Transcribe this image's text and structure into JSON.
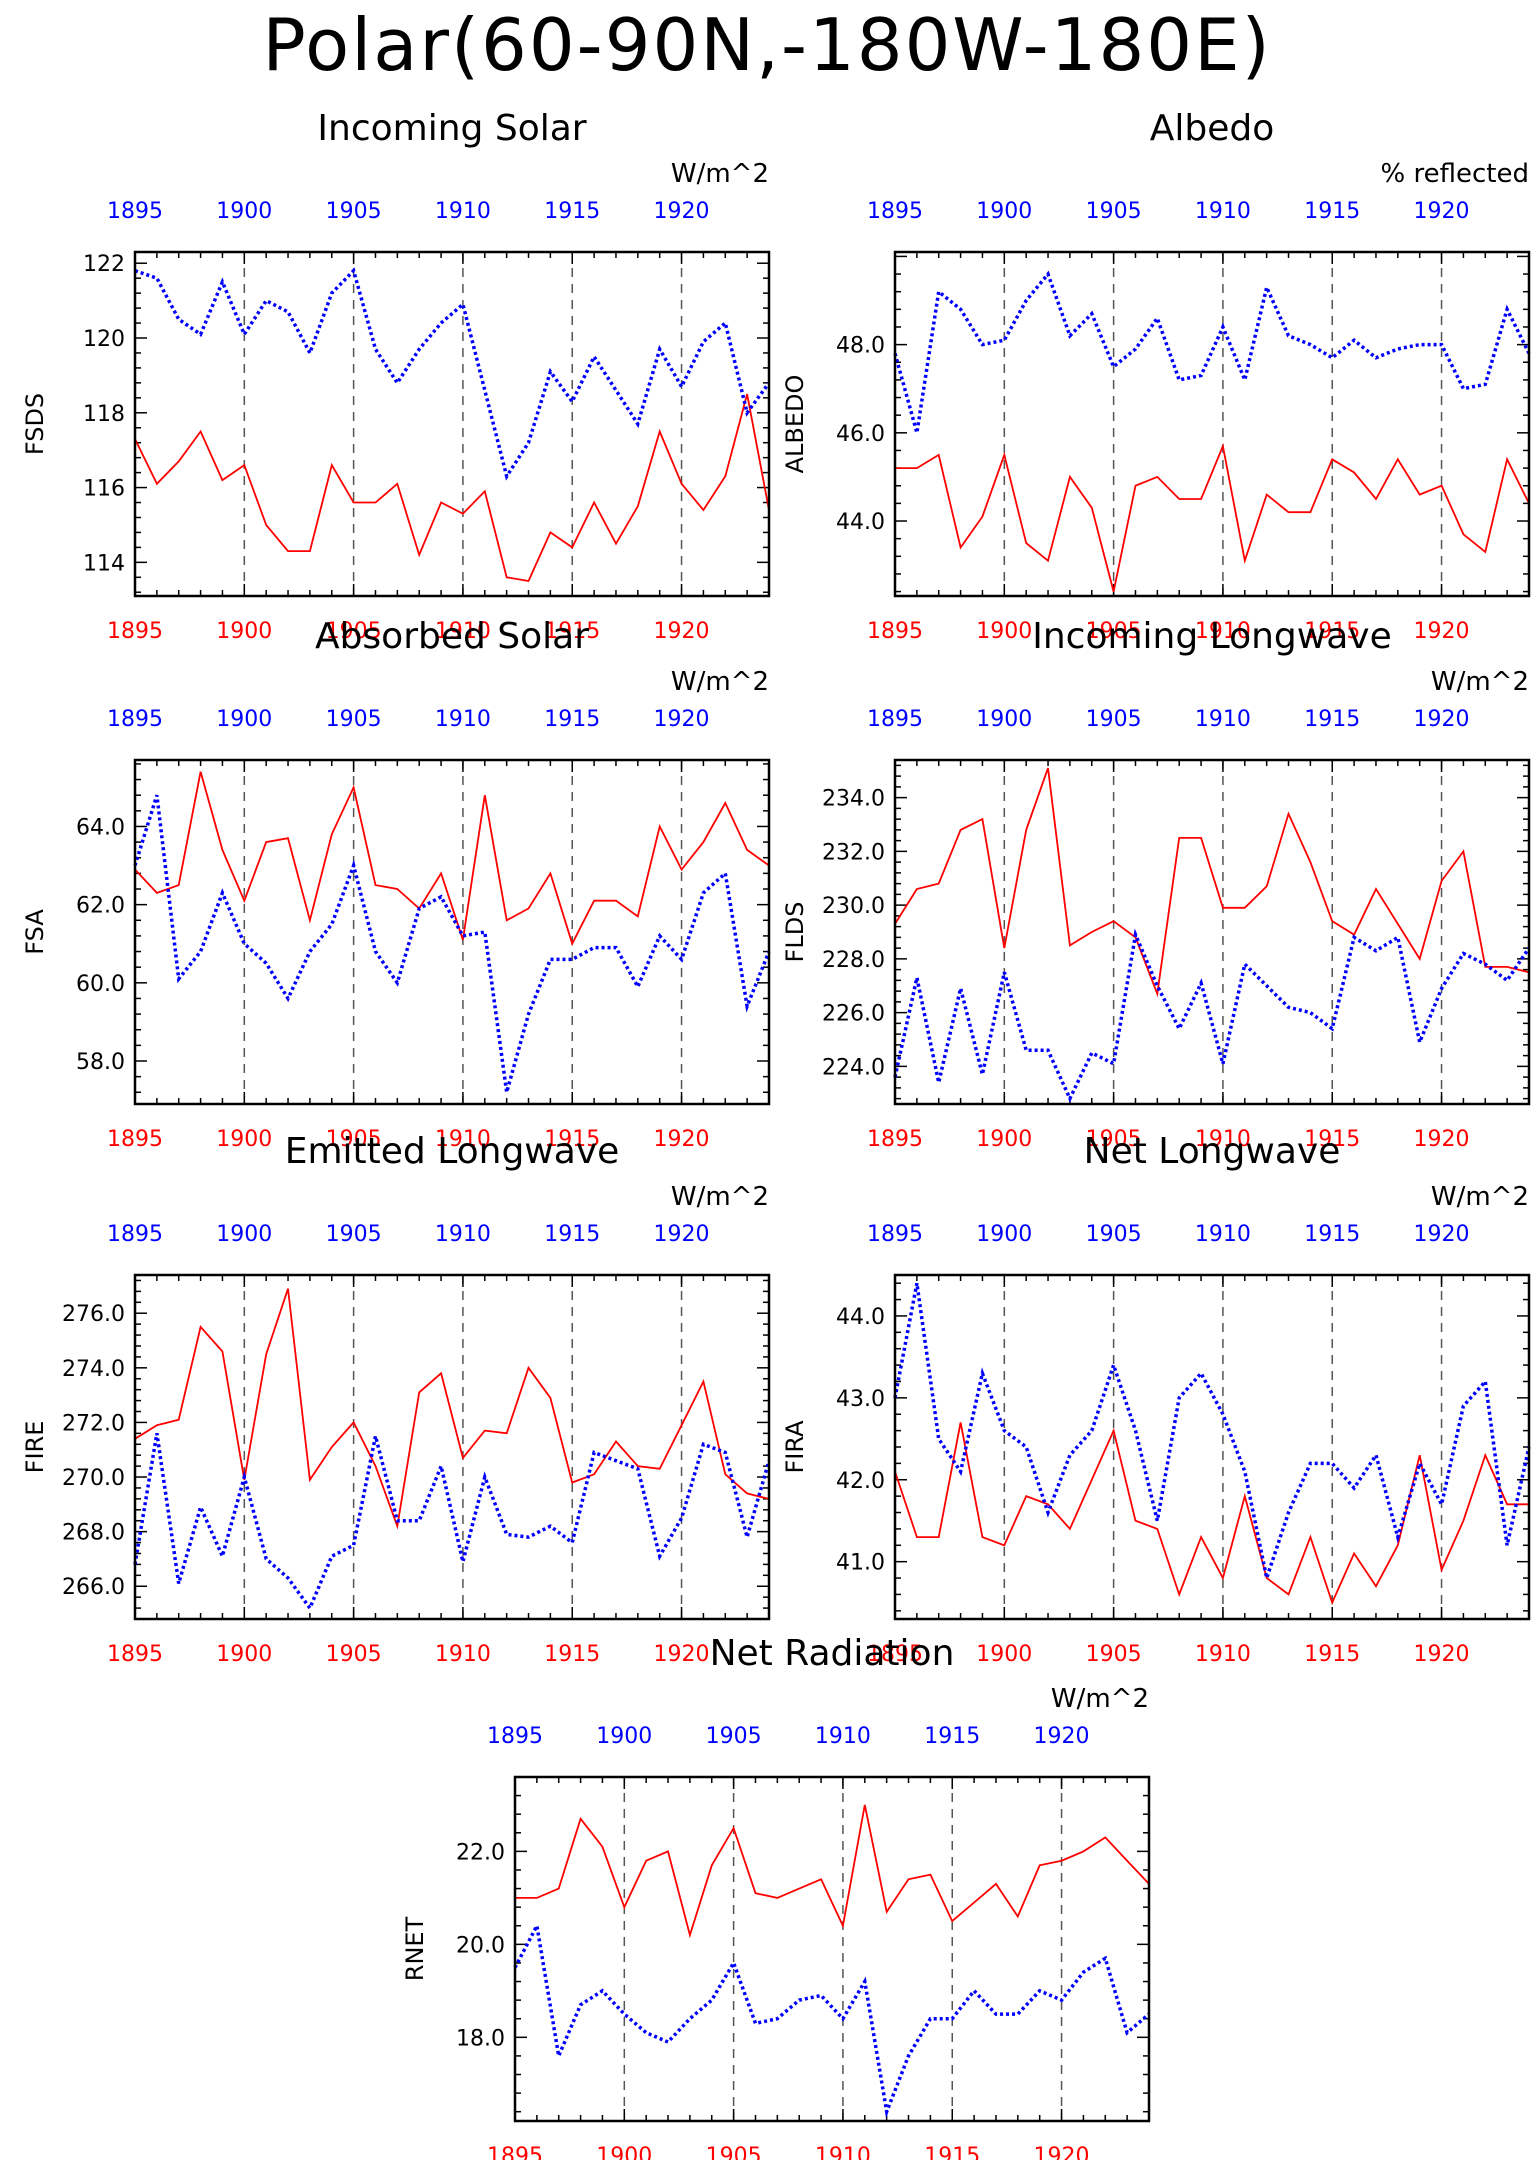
{
  "title": "Polar(60-90N,-180W-180E)",
  "colors": {
    "red": "#ff0000",
    "blue": "#0000ff",
    "axis": "#000000",
    "grid": "#555555"
  },
  "chart_data": [
    {
      "type": "line",
      "title": "Incoming Solar",
      "ylabel": "FSDS",
      "units": "W/m^2",
      "x": [
        1895,
        1896,
        1897,
        1898,
        1899,
        1900,
        1901,
        1902,
        1903,
        1904,
        1905,
        1906,
        1907,
        1908,
        1909,
        1910,
        1911,
        1912,
        1913,
        1914,
        1915,
        1916,
        1917,
        1918,
        1919,
        1920,
        1921,
        1922,
        1923,
        1924
      ],
      "xlim": [
        1895,
        1924
      ],
      "xticks": [
        1895,
        1900,
        1905,
        1910,
        1915,
        1920
      ],
      "ylim": [
        113.1,
        122.3
      ],
      "yticks": [
        114,
        116,
        118,
        120,
        122
      ],
      "ytick_decimals": 0,
      "series": [
        {
          "color": "red",
          "style": "solid",
          "values": [
            117.3,
            116.1,
            116.7,
            117.5,
            116.2,
            116.6,
            115.0,
            114.3,
            114.3,
            116.6,
            115.6,
            115.6,
            116.1,
            114.2,
            115.6,
            115.3,
            115.9,
            113.6,
            113.5,
            114.8,
            114.4,
            115.6,
            114.5,
            115.5,
            117.5,
            116.1,
            115.4,
            116.3,
            118.5,
            115.4
          ]
        },
        {
          "color": "blue",
          "style": "dotted",
          "values": [
            121.8,
            121.6,
            120.5,
            120.1,
            121.5,
            120.1,
            121.0,
            120.7,
            119.6,
            121.2,
            121.8,
            119.7,
            118.8,
            119.7,
            120.4,
            120.9,
            118.6,
            116.3,
            117.2,
            119.1,
            118.3,
            119.5,
            118.6,
            117.7,
            119.7,
            118.7,
            119.9,
            120.4,
            118.0,
            118.8
          ]
        }
      ]
    },
    {
      "type": "line",
      "title": "Albedo",
      "ylabel": "ALBEDO",
      "units": "% reflected",
      "x": [
        1895,
        1896,
        1897,
        1898,
        1899,
        1900,
        1901,
        1902,
        1903,
        1904,
        1905,
        1906,
        1907,
        1908,
        1909,
        1910,
        1911,
        1912,
        1913,
        1914,
        1915,
        1916,
        1917,
        1918,
        1919,
        1920,
        1921,
        1922,
        1923,
        1924
      ],
      "xlim": [
        1895,
        1924
      ],
      "xticks": [
        1895,
        1900,
        1905,
        1910,
        1915,
        1920
      ],
      "ylim": [
        42.3,
        50.1
      ],
      "yticks": [
        44.0,
        46.0,
        48.0
      ],
      "ytick_decimals": 1,
      "series": [
        {
          "color": "red",
          "style": "solid",
          "values": [
            45.2,
            45.2,
            45.5,
            43.4,
            44.1,
            45.5,
            43.5,
            43.1,
            45.0,
            44.3,
            42.4,
            44.8,
            45.0,
            44.5,
            44.5,
            45.7,
            43.1,
            44.6,
            44.2,
            44.2,
            45.4,
            45.1,
            44.5,
            45.4,
            44.6,
            44.8,
            43.7,
            43.3,
            45.4,
            44.4
          ]
        },
        {
          "color": "blue",
          "style": "dotted",
          "values": [
            47.8,
            46.0,
            49.2,
            48.8,
            48.0,
            48.1,
            49.0,
            49.6,
            48.2,
            48.7,
            47.5,
            47.9,
            48.6,
            47.2,
            47.3,
            48.4,
            47.2,
            49.3,
            48.2,
            48.0,
            47.7,
            48.1,
            47.7,
            47.9,
            48.0,
            48.0,
            47.0,
            47.1,
            48.8,
            47.8
          ]
        }
      ]
    },
    {
      "type": "line",
      "title": "Absorbed Solar",
      "ylabel": "FSA",
      "units": "W/m^2",
      "x": [
        1895,
        1896,
        1897,
        1898,
        1899,
        1900,
        1901,
        1902,
        1903,
        1904,
        1905,
        1906,
        1907,
        1908,
        1909,
        1910,
        1911,
        1912,
        1913,
        1914,
        1915,
        1916,
        1917,
        1918,
        1919,
        1920,
        1921,
        1922,
        1923,
        1924
      ],
      "xlim": [
        1895,
        1924
      ],
      "xticks": [
        1895,
        1900,
        1905,
        1910,
        1915,
        1920
      ],
      "ylim": [
        56.9,
        65.7
      ],
      "yticks": [
        58.0,
        60.0,
        62.0,
        64.0
      ],
      "ytick_decimals": 1,
      "series": [
        {
          "color": "red",
          "style": "solid",
          "values": [
            62.9,
            62.3,
            62.5,
            65.4,
            63.4,
            62.1,
            63.6,
            63.7,
            61.6,
            63.8,
            65.0,
            62.5,
            62.4,
            61.9,
            62.8,
            61.1,
            64.8,
            61.6,
            61.9,
            62.8,
            61.0,
            62.1,
            62.1,
            61.7,
            64.0,
            62.9,
            63.6,
            64.6,
            63.4,
            63.0
          ]
        },
        {
          "color": "blue",
          "style": "dotted",
          "values": [
            63.0,
            64.8,
            60.1,
            60.8,
            62.3,
            61.0,
            60.5,
            59.6,
            60.8,
            61.5,
            63.0,
            60.8,
            60.0,
            61.9,
            62.2,
            61.2,
            61.3,
            57.2,
            59.2,
            60.6,
            60.6,
            60.9,
            60.9,
            59.9,
            61.2,
            60.6,
            62.3,
            62.8,
            59.4,
            60.8
          ]
        }
      ]
    },
    {
      "type": "line",
      "title": "Incoming Longwave",
      "ylabel": "FLDS",
      "units": "W/m^2",
      "x": [
        1895,
        1896,
        1897,
        1898,
        1899,
        1900,
        1901,
        1902,
        1903,
        1904,
        1905,
        1906,
        1907,
        1908,
        1909,
        1910,
        1911,
        1912,
        1913,
        1914,
        1915,
        1916,
        1917,
        1918,
        1919,
        1920,
        1921,
        1922,
        1923,
        1924
      ],
      "xlim": [
        1895,
        1924
      ],
      "xticks": [
        1895,
        1900,
        1905,
        1910,
        1915,
        1920
      ],
      "ylim": [
        222.6,
        235.4
      ],
      "yticks": [
        224.0,
        226.0,
        228.0,
        230.0,
        232.0,
        234.0
      ],
      "ytick_decimals": 1,
      "series": [
        {
          "color": "red",
          "style": "solid",
          "values": [
            229.3,
            230.6,
            230.8,
            232.8,
            233.2,
            228.4,
            232.8,
            235.1,
            228.5,
            229.0,
            229.4,
            228.8,
            226.7,
            232.5,
            232.5,
            229.9,
            229.9,
            230.7,
            233.4,
            231.6,
            229.4,
            228.9,
            230.6,
            229.3,
            228.0,
            230.9,
            232.0,
            227.7,
            227.7,
            227.5
          ]
        },
        {
          "color": "blue",
          "style": "dotted",
          "values": [
            223.6,
            227.3,
            223.4,
            226.9,
            223.7,
            227.5,
            224.6,
            224.6,
            222.8,
            224.5,
            224.1,
            228.9,
            227.0,
            225.4,
            227.1,
            224.1,
            227.8,
            227.0,
            226.2,
            226.0,
            225.4,
            228.8,
            228.3,
            228.8,
            224.9,
            226.9,
            228.2,
            227.8,
            227.2,
            228.4
          ]
        }
      ]
    },
    {
      "type": "line",
      "title": "Emitted Longwave",
      "ylabel": "FIRE",
      "units": "W/m^2",
      "x": [
        1895,
        1896,
        1897,
        1898,
        1899,
        1900,
        1901,
        1902,
        1903,
        1904,
        1905,
        1906,
        1907,
        1908,
        1909,
        1910,
        1911,
        1912,
        1913,
        1914,
        1915,
        1916,
        1917,
        1918,
        1919,
        1920,
        1921,
        1922,
        1923,
        1924
      ],
      "xlim": [
        1895,
        1924
      ],
      "xticks": [
        1895,
        1900,
        1905,
        1910,
        1915,
        1920
      ],
      "ylim": [
        264.8,
        277.4
      ],
      "yticks": [
        266.0,
        268.0,
        270.0,
        272.0,
        274.0,
        276.0
      ],
      "ytick_decimals": 1,
      "series": [
        {
          "color": "red",
          "style": "solid",
          "values": [
            271.4,
            271.9,
            272.1,
            275.5,
            274.6,
            269.9,
            274.5,
            276.9,
            269.9,
            271.1,
            272.0,
            270.4,
            268.2,
            273.1,
            273.8,
            270.7,
            271.7,
            271.6,
            274.0,
            272.9,
            269.8,
            270.1,
            271.3,
            270.4,
            270.3,
            271.9,
            273.5,
            270.1,
            269.4,
            269.2
          ]
        },
        {
          "color": "blue",
          "style": "dotted",
          "values": [
            266.8,
            271.6,
            266.1,
            268.9,
            267.1,
            270.0,
            267.0,
            266.3,
            265.2,
            267.1,
            267.5,
            271.5,
            268.4,
            268.4,
            270.4,
            266.9,
            270.0,
            267.9,
            267.8,
            268.2,
            267.6,
            270.9,
            270.6,
            270.3,
            267.1,
            268.5,
            271.2,
            270.9,
            267.8,
            270.6
          ]
        }
      ]
    },
    {
      "type": "line",
      "title": "Net Longwave",
      "ylabel": "FIRA",
      "units": "W/m^2",
      "x": [
        1895,
        1896,
        1897,
        1898,
        1899,
        1900,
        1901,
        1902,
        1903,
        1904,
        1905,
        1906,
        1907,
        1908,
        1909,
        1910,
        1911,
        1912,
        1913,
        1914,
        1915,
        1916,
        1917,
        1918,
        1919,
        1920,
        1921,
        1922,
        1923,
        1924
      ],
      "xlim": [
        1895,
        1924
      ],
      "xticks": [
        1895,
        1900,
        1905,
        1910,
        1915,
        1920
      ],
      "ylim": [
        40.3,
        44.5
      ],
      "yticks": [
        41.0,
        42.0,
        43.0,
        44.0
      ],
      "ytick_decimals": 1,
      "series": [
        {
          "color": "red",
          "style": "solid",
          "values": [
            42.1,
            41.3,
            41.3,
            42.7,
            41.3,
            41.2,
            41.8,
            41.7,
            41.4,
            42.0,
            42.6,
            41.5,
            41.4,
            40.6,
            41.3,
            40.8,
            41.8,
            40.8,
            40.6,
            41.3,
            40.5,
            41.1,
            40.7,
            41.2,
            42.3,
            40.9,
            41.5,
            42.3,
            41.7,
            41.7
          ]
        },
        {
          "color": "blue",
          "style": "dotted",
          "values": [
            43.0,
            44.4,
            42.5,
            42.1,
            43.3,
            42.6,
            42.4,
            41.6,
            42.3,
            42.6,
            43.4,
            42.6,
            41.5,
            43.0,
            43.3,
            42.8,
            42.1,
            40.8,
            41.6,
            42.2,
            42.2,
            41.9,
            42.3,
            41.3,
            42.2,
            41.7,
            42.9,
            43.2,
            41.2,
            42.4
          ]
        }
      ]
    },
    {
      "type": "line",
      "title": "Net Radiation",
      "ylabel": "RNET",
      "units": "W/m^2",
      "x": [
        1895,
        1896,
        1897,
        1898,
        1899,
        1900,
        1901,
        1902,
        1903,
        1904,
        1905,
        1906,
        1907,
        1908,
        1909,
        1910,
        1911,
        1912,
        1913,
        1914,
        1915,
        1916,
        1917,
        1918,
        1919,
        1920,
        1921,
        1922,
        1923,
        1924
      ],
      "xlim": [
        1895,
        1924
      ],
      "xticks": [
        1895,
        1900,
        1905,
        1910,
        1915,
        1920
      ],
      "ylim": [
        16.2,
        23.6
      ],
      "yticks": [
        18.0,
        20.0,
        22.0
      ],
      "ytick_decimals": 1,
      "series": [
        {
          "color": "red",
          "style": "solid",
          "values": [
            21.0,
            21.0,
            21.2,
            22.7,
            22.1,
            20.8,
            21.8,
            22.0,
            20.2,
            21.7,
            22.5,
            21.1,
            21.0,
            21.2,
            21.4,
            20.4,
            23.0,
            20.7,
            21.4,
            21.5,
            20.5,
            20.9,
            21.3,
            20.6,
            21.7,
            21.8,
            22.0,
            22.3,
            21.8,
            21.3
          ]
        },
        {
          "color": "blue",
          "style": "dotted",
          "values": [
            19.5,
            20.4,
            17.6,
            18.7,
            19.0,
            18.5,
            18.1,
            17.9,
            18.4,
            18.8,
            19.6,
            18.3,
            18.4,
            18.8,
            18.9,
            18.4,
            19.2,
            16.4,
            17.6,
            18.4,
            18.4,
            19.0,
            18.5,
            18.5,
            19.0,
            18.8,
            19.4,
            19.7,
            18.1,
            18.5
          ]
        }
      ]
    }
  ]
}
